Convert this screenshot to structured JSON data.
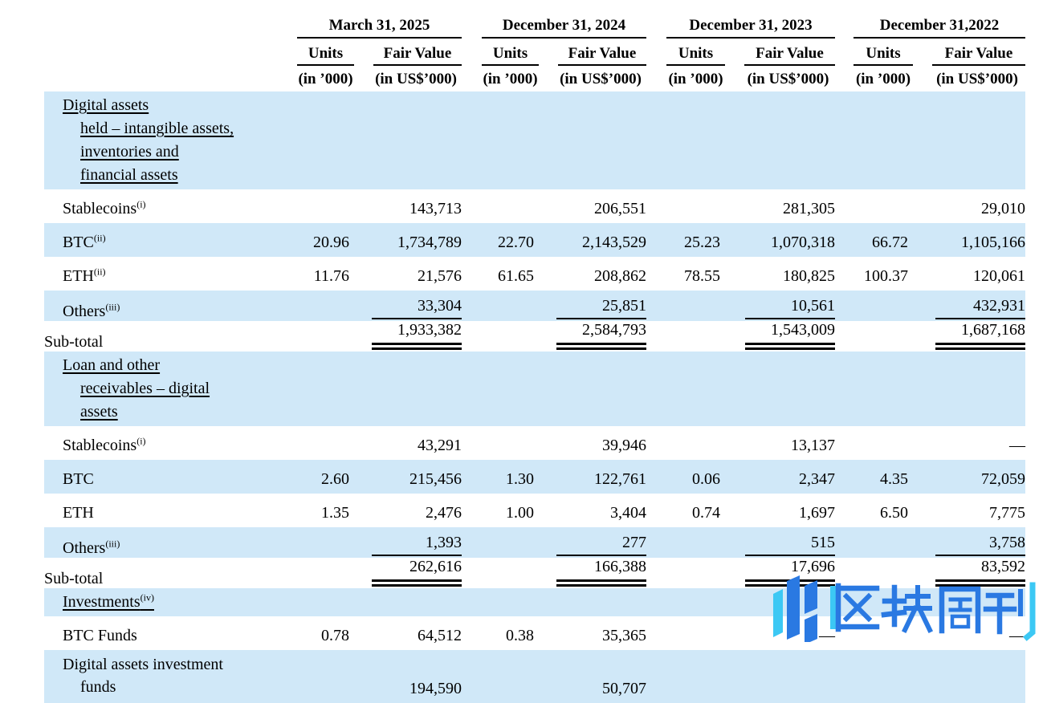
{
  "colors": {
    "row_shade": "#d0e8f8",
    "text": "#000000",
    "rule": "#000000",
    "watermark_blue": "#2a79e2",
    "watermark_cyan": "#3cc8f4"
  },
  "table": {
    "units_label": "Units",
    "fair_value_label": "Fair Value",
    "units_sub": "(in ’000)",
    "fair_value_sub": "(in US$’000)",
    "groups": [
      {
        "date": "March 31, 2025"
      },
      {
        "date": "December 31, 2024"
      },
      {
        "date": "December 31, 2023"
      },
      {
        "date": "December 31,2022"
      }
    ],
    "sections": [
      {
        "header_lines": [
          "Digital assets",
          "held – intangible assets,",
          "inventories and",
          "financial assets"
        ],
        "rows": [
          {
            "label": "Stablecoins",
            "sup": "(i)",
            "cells": [
              "",
              "143,713",
              "",
              "206,551",
              "",
              "281,305",
              "",
              "29,010"
            ]
          },
          {
            "label": "BTC",
            "sup": "(ii)",
            "cells": [
              "20.96",
              "1,734,789",
              "22.70",
              "2,143,529",
              "25.23",
              "1,070,318",
              "66.72",
              "1,105,166"
            ]
          },
          {
            "label": "ETH",
            "sup": "(ii)",
            "cells": [
              "11.76",
              "21,576",
              "61.65",
              "208,862",
              "78.55",
              "180,825",
              "100.37",
              "120,061"
            ]
          },
          {
            "label": "Others",
            "sup": "(iii)",
            "rule": "single",
            "cells": [
              "",
              "33,304",
              "",
              "25,851",
              "",
              "10,561",
              "",
              "432,931"
            ]
          },
          {
            "label": "Sub-total",
            "flush": true,
            "rule": "double",
            "cells": [
              "",
              "1,933,382",
              "",
              "2,584,793",
              "",
              "1,543,009",
              "",
              "1,687,168"
            ]
          }
        ]
      },
      {
        "header_lines": [
          "Loan and other",
          "receivables – digital",
          "assets"
        ],
        "rows": [
          {
            "label": "Stablecoins",
            "sup": "(i)",
            "cells": [
              "",
              "43,291",
              "",
              "39,946",
              "",
              "13,137",
              "",
              "—"
            ]
          },
          {
            "label": "BTC",
            "cells": [
              "2.60",
              "215,456",
              "1.30",
              "122,761",
              "0.06",
              "2,347",
              "4.35",
              "72,059"
            ]
          },
          {
            "label": "ETH",
            "cells": [
              "1.35",
              "2,476",
              "1.00",
              "3,404",
              "0.74",
              "1,697",
              "6.50",
              "7,775"
            ]
          },
          {
            "label": "Others",
            "sup": "(iii)",
            "rule": "single",
            "cells": [
              "",
              "1,393",
              "",
              "277",
              "",
              "515",
              "",
              "3,758"
            ]
          },
          {
            "label": "Sub-total",
            "flush": true,
            "rule": "double",
            "cells": [
              "",
              "262,616",
              "",
              "166,388",
              "",
              "17,696",
              "",
              "83,592"
            ]
          }
        ]
      },
      {
        "header_lines": [
          "Investments"
        ],
        "header_sup": "(iv)",
        "rows": [
          {
            "label": "BTC Funds",
            "cells": [
              "0.78",
              "64,512",
              "0.38",
              "35,365",
              "",
              "—",
              "",
              "—"
            ]
          },
          {
            "label_lines": [
              "Digital assets investment",
              "funds"
            ],
            "tall": true,
            "cells": [
              "",
              "194,590",
              "",
              "50,707",
              "",
              "",
              "",
              ""
            ]
          }
        ]
      }
    ]
  },
  "watermark": {
    "text": "区块周刊"
  }
}
